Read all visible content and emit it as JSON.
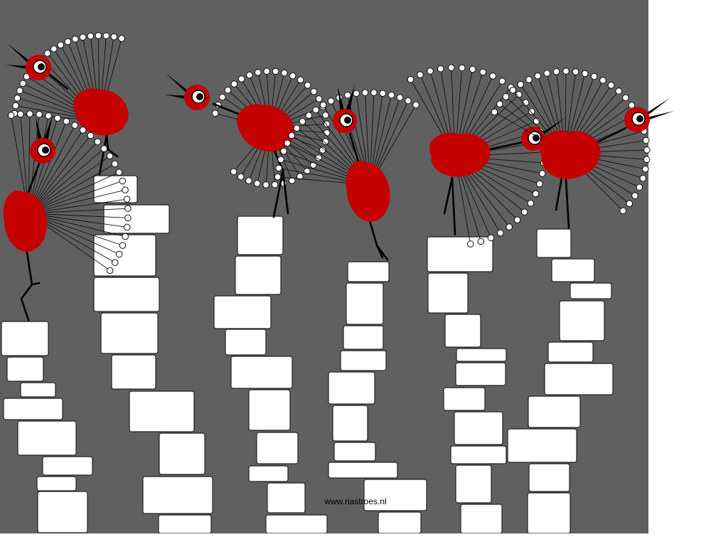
{
  "artwork": {
    "credit": "www.riastroes.nl",
    "colors": {
      "background": "#606060",
      "margin": "#ffffff",
      "bird_body": "#c40000",
      "block_fill": "#ffffff",
      "outline": "#000000"
    },
    "subjects": {
      "birds": 7,
      "stone_columns": 6
    }
  }
}
